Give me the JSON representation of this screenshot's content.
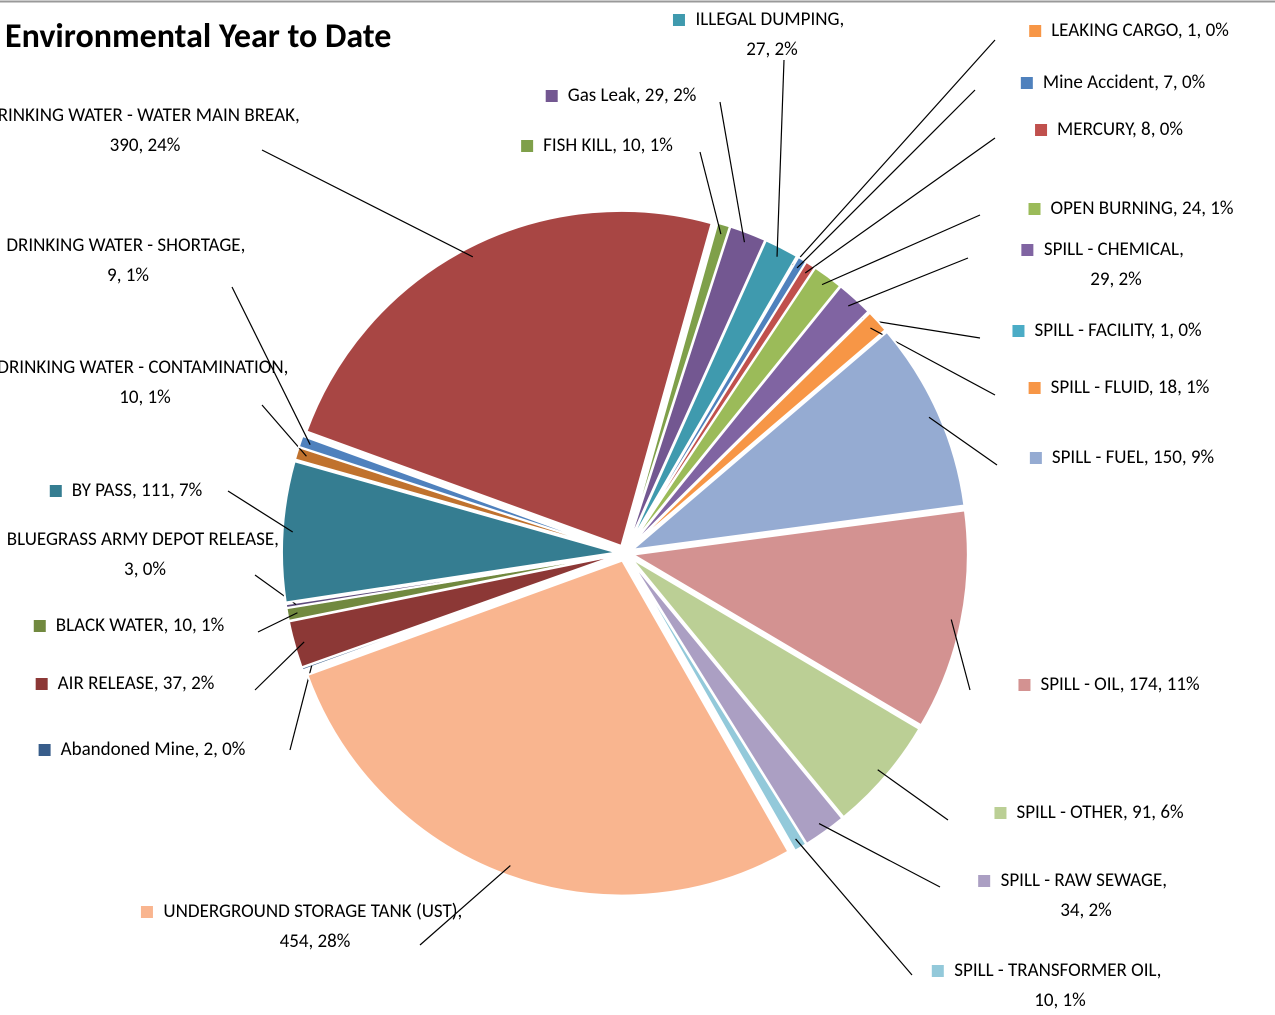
{
  "chart_data": {
    "type": "pie",
    "title": "Environmental Year to Date",
    "label_separator": ", ",
    "categories": [
      "Abandoned Mine",
      "AIR RELEASE",
      "BLACK WATER",
      "BLUEGRASS ARMY DEPOT RELEASE",
      "BY PASS",
      "DRINKING WATER - CONTAMINATION",
      "DRINKING WATER - SHORTAGE",
      "DRINKING WATER - WATER MAIN BREAK",
      "FISH KILL",
      "Gas Leak",
      "ILLEGAL DUMPING",
      "LEAKING CARGO",
      "Mine Accident",
      "MERCURY",
      "OPEN BURNING",
      "SPILL - CHEMICAL",
      "SPILL - FACILITY",
      "SPILL - FLUID",
      "SPILL - FUEL",
      "SPILL - OIL",
      "SPILL - OTHER",
      "SPILL - RAW SEWAGE",
      "SPILL - TRANSFORMER OIL",
      "UNDERGROUND STORAGE TANK (UST)"
    ],
    "values": [
      2,
      37,
      10,
      3,
      111,
      10,
      9,
      390,
      10,
      29,
      27,
      1,
      7,
      8,
      24,
      29,
      1,
      18,
      150,
      174,
      91,
      34,
      10,
      454
    ],
    "percent_labels": [
      "0%",
      "2%",
      "1%",
      "0%",
      "7%",
      "1%",
      "1%",
      "24%",
      "1%",
      "2%",
      "2%",
      "0%",
      "0%",
      "0%",
      "1%",
      "2%",
      "0%",
      "1%",
      "9%",
      "11%",
      "6%",
      "2%",
      "1%",
      "28%"
    ],
    "colors": [
      "#385d8a",
      "#8c3836",
      "#71893f",
      "#5e4b7c",
      "#357d91",
      "#c0722e",
      "#4f81bd",
      "#a84644",
      "#7fa04a",
      "#735791",
      "#3f9aae",
      "#f79646",
      "#4f81bd",
      "#c0504d",
      "#9bbb59",
      "#8064a2",
      "#4bacc6",
      "#f79646",
      "#95abd2",
      "#d39291",
      "#bbcf95",
      "#ab9fc3",
      "#93c9da",
      "#f9b58f"
    ]
  }
}
